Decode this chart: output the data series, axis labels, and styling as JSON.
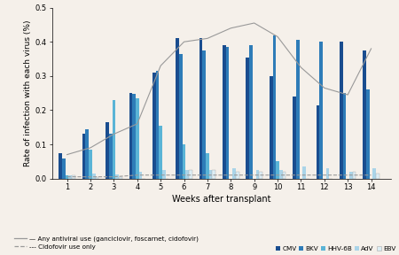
{
  "weeks": [
    1,
    2,
    3,
    4,
    5,
    6,
    7,
    8,
    9,
    10,
    11,
    12,
    13,
    14
  ],
  "CMV": [
    0.075,
    0.13,
    0.165,
    0.25,
    0.31,
    0.41,
    0.41,
    0.39,
    0.355,
    0.3,
    0.24,
    0.215,
    0.4,
    0.375
  ],
  "BKV": [
    0.058,
    0.145,
    0.13,
    0.248,
    0.315,
    0.365,
    0.375,
    0.385,
    0.39,
    0.42,
    0.405,
    0.4,
    0.25,
    0.26
  ],
  "HHV6B": [
    0.01,
    0.085,
    0.23,
    0.235,
    0.155,
    0.1,
    0.075,
    0.0,
    0.0,
    0.05,
    0.0,
    0.0,
    0.0,
    0.0
  ],
  "AdV": [
    0.01,
    0.015,
    0.012,
    0.02,
    0.025,
    0.025,
    0.025,
    0.03,
    0.025,
    0.025,
    0.035,
    0.03,
    0.02,
    0.03
  ],
  "EBV": [
    0.01,
    0.005,
    0.005,
    0.0,
    0.0,
    0.025,
    0.025,
    0.02,
    0.02,
    0.02,
    0.0,
    0.0,
    0.02,
    0.015
  ],
  "line_solid": [
    0.07,
    0.09,
    0.13,
    0.16,
    0.33,
    0.4,
    0.41,
    0.44,
    0.455,
    0.415,
    0.325,
    0.265,
    0.245,
    0.38
  ],
  "line_dashed": [
    0.005,
    0.005,
    0.005,
    0.01,
    0.01,
    0.01,
    0.01,
    0.01,
    0.01,
    0.01,
    0.01,
    0.01,
    0.01,
    0.01
  ],
  "color_CMV": "#1a4d8f",
  "color_BKV": "#2e7cb8",
  "color_HHV6B": "#5ab4d6",
  "color_AdV": "#aad4e8",
  "color_EBV": "#ddeef5",
  "color_line": "#999999",
  "bar_width": 0.14,
  "ylabel": "Rate of infection with each virus (%)",
  "xlabel": "Weeks after transplant",
  "ylim": [
    0,
    0.5
  ],
  "yticks": [
    0.0,
    0.1,
    0.2,
    0.3,
    0.4,
    0.5
  ],
  "legend_line1": "— Any antiviral use (ganciclovir, foscarnet, cidofovir)",
  "legend_line2": "--- Cidofovir use only",
  "bg_color": "#f5f0ea"
}
